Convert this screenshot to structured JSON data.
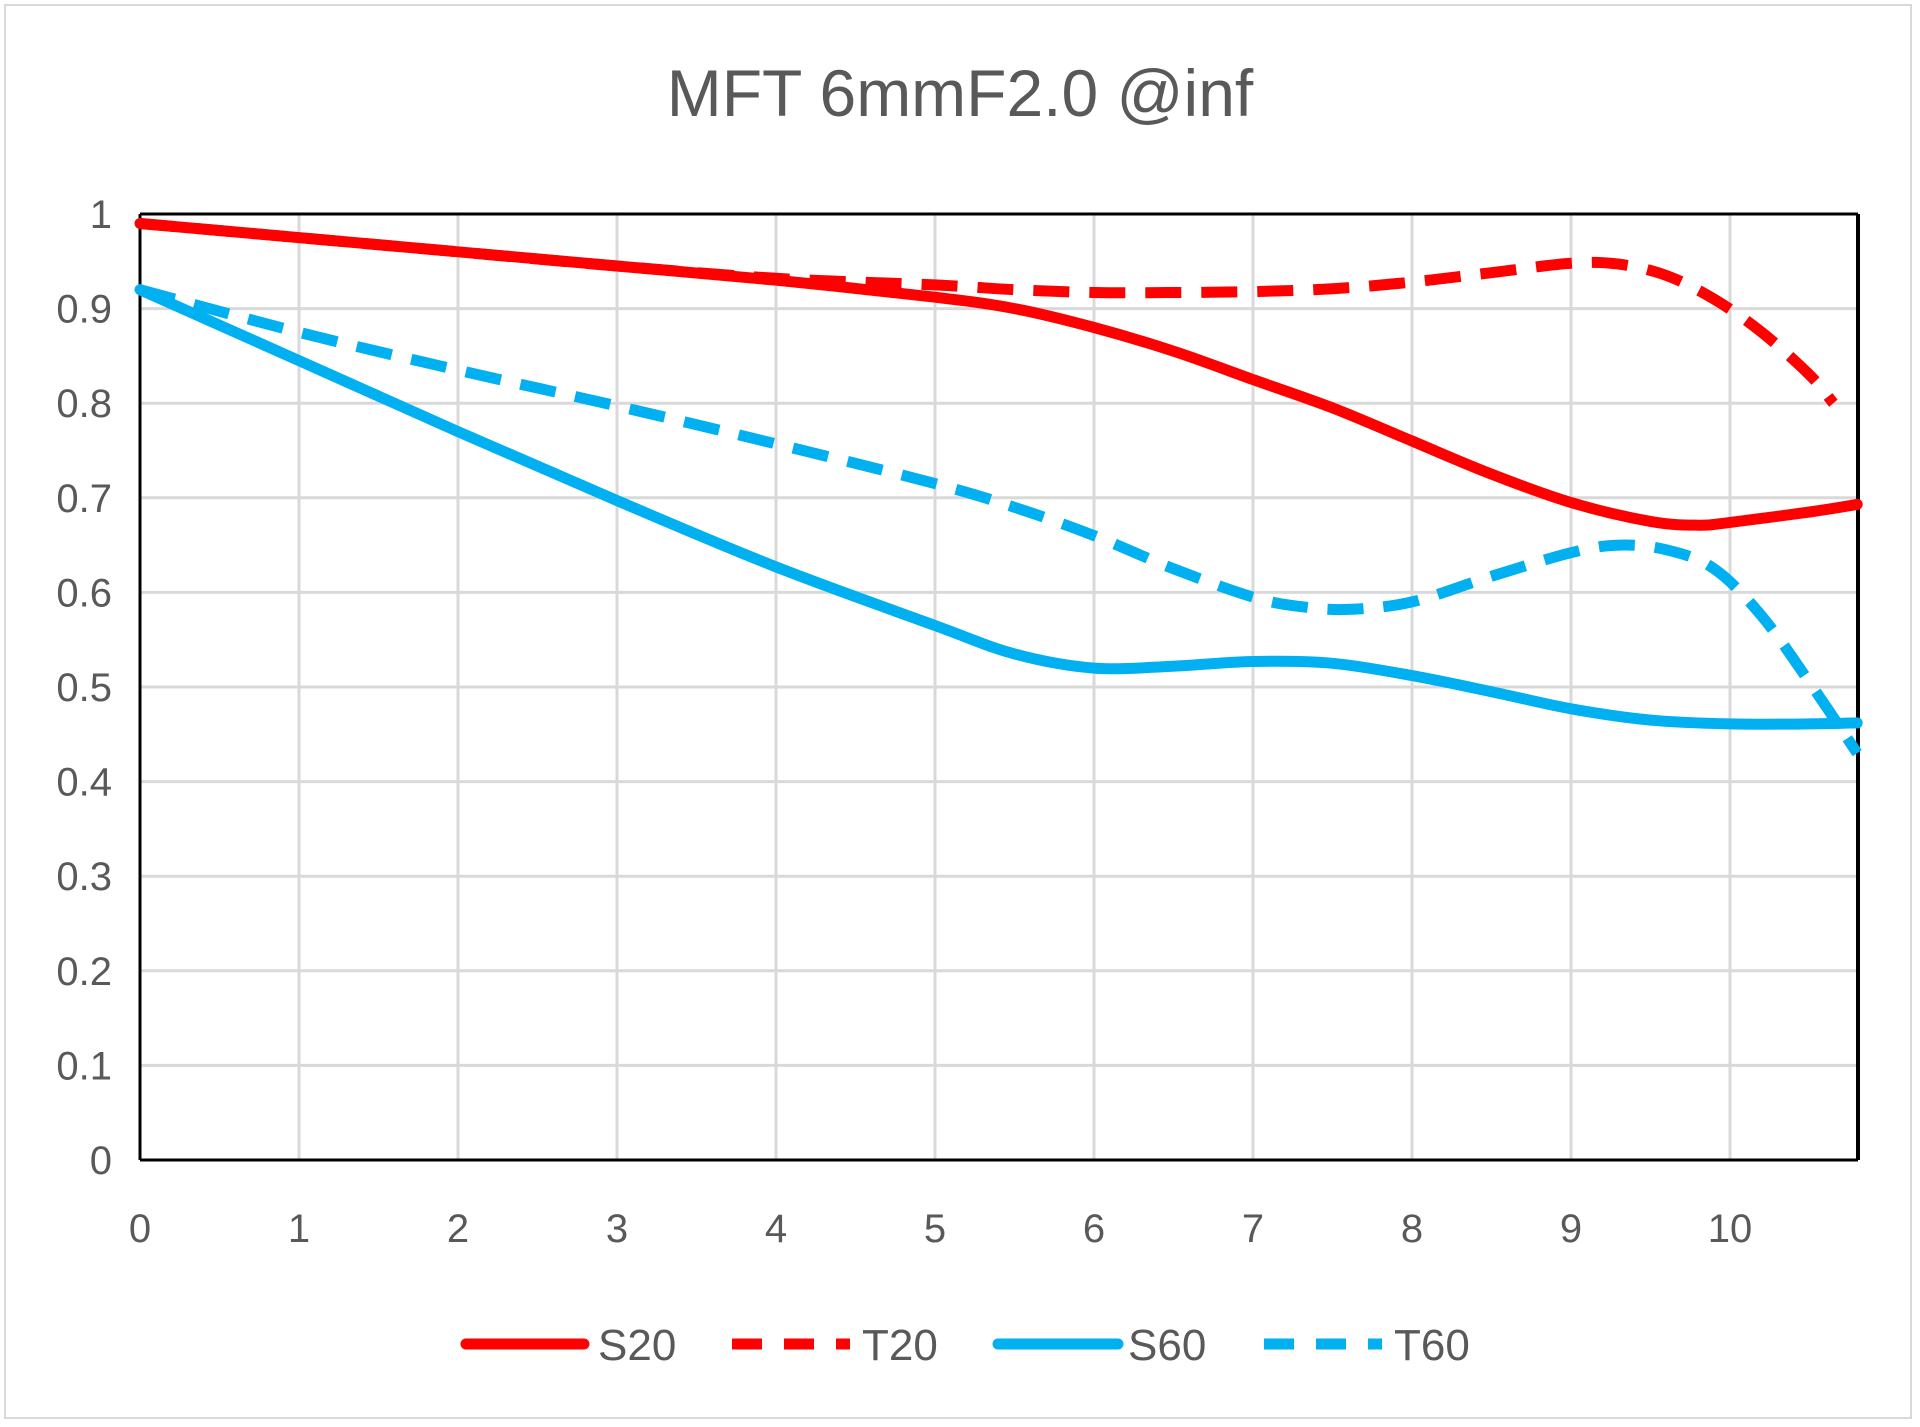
{
  "chart_data": {
    "type": "line",
    "title": "MFT  6mmF2.0 @inf",
    "xlabel": "",
    "ylabel": "",
    "xlim": [
      0,
      10.8
    ],
    "ylim": [
      0,
      1
    ],
    "x_ticks": [
      "0",
      "1",
      "2",
      "3",
      "4",
      "5",
      "6",
      "7",
      "8",
      "9",
      "10"
    ],
    "y_ticks": [
      "0",
      "0.1",
      "0.2",
      "0.3",
      "0.4",
      "0.5",
      "0.6",
      "0.7",
      "0.8",
      "0.9",
      "1"
    ],
    "grid": true,
    "legend_position": "bottom",
    "series": [
      {
        "name": "S20",
        "color": "#ff0000",
        "dash": "solid",
        "x": [
          0,
          1,
          2,
          3,
          4,
          5,
          5.5,
          6,
          6.5,
          7,
          7.5,
          8,
          8.5,
          9,
          9.5,
          9.8,
          10,
          10.5,
          10.8
        ],
        "y": [
          0.99,
          0.975,
          0.96,
          0.945,
          0.93,
          0.912,
          0.9,
          0.88,
          0.855,
          0.825,
          0.795,
          0.76,
          0.725,
          0.695,
          0.675,
          0.671,
          0.674,
          0.685,
          0.693
        ]
      },
      {
        "name": "T20",
        "color": "#ff0000",
        "dash": "dashed",
        "x": [
          0,
          1,
          2,
          3,
          4,
          5,
          5.5,
          6,
          6.5,
          7,
          7.5,
          8,
          8.5,
          9,
          9.3,
          9.6,
          9.9,
          10.2,
          10.5,
          10.65
        ],
        "y": [
          0.99,
          0.975,
          0.96,
          0.945,
          0.932,
          0.925,
          0.92,
          0.917,
          0.917,
          0.918,
          0.921,
          0.928,
          0.938,
          0.948,
          0.947,
          0.935,
          0.91,
          0.875,
          0.83,
          0.8
        ]
      },
      {
        "name": "S60",
        "color": "#00b0f0",
        "dash": "solid",
        "x": [
          0,
          1,
          2,
          3,
          4,
          5,
          5.5,
          6,
          6.5,
          7,
          7.5,
          8,
          8.5,
          9,
          9.5,
          10,
          10.5,
          10.8
        ],
        "y": [
          0.92,
          0.845,
          0.77,
          0.697,
          0.627,
          0.565,
          0.535,
          0.52,
          0.522,
          0.527,
          0.525,
          0.512,
          0.495,
          0.477,
          0.465,
          0.461,
          0.461,
          0.462
        ]
      },
      {
        "name": "T60",
        "color": "#00b0f0",
        "dash": "dashed",
        "x": [
          0,
          1,
          2,
          3,
          4,
          5,
          5.5,
          6,
          6.5,
          7,
          7.3,
          7.6,
          8,
          8.5,
          9,
          9.3,
          9.6,
          9.9,
          10.2,
          10.5,
          10.8
        ],
        "y": [
          0.92,
          0.875,
          0.835,
          0.797,
          0.757,
          0.715,
          0.69,
          0.66,
          0.625,
          0.595,
          0.585,
          0.582,
          0.59,
          0.617,
          0.642,
          0.65,
          0.645,
          0.625,
          0.575,
          0.505,
          0.43
        ]
      }
    ]
  }
}
